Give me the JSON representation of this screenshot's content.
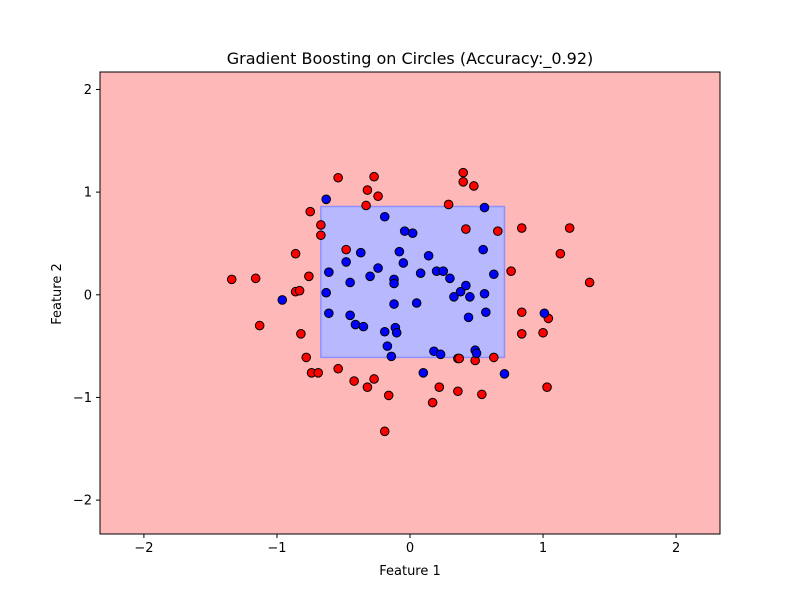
{
  "chart_data": {
    "type": "scatter",
    "title": "Gradient Boosting on Circles (Accuracy:_0.92)",
    "xlabel": "Feature 1",
    "ylabel": "Feature 2",
    "xlim": [
      -2.33,
      2.33
    ],
    "ylim": [
      -2.33,
      2.17
    ],
    "xticks": [
      -2,
      -1,
      0,
      1,
      2
    ],
    "yticks": [
      -2,
      -1,
      0,
      1,
      2
    ],
    "grid": false,
    "legend": "none",
    "colors": {
      "background_region": "#ffb8b8",
      "inner_region": "#b8b8ff",
      "inner_region_edge": "#8f8fff",
      "class_0_points": "#ff0000",
      "class_1_points": "#0000ff",
      "point_edge": "#000000"
    },
    "decision_regions": [
      {
        "class": 1,
        "x": [
          -0.67,
          0.71
        ],
        "y": [
          -0.61,
          0.86
        ]
      }
    ],
    "series": [
      {
        "class": 0,
        "color": "#ff0000",
        "points": [
          [
            -1.34,
            0.15
          ],
          [
            -1.16,
            0.16
          ],
          [
            -1.13,
            -0.3
          ],
          [
            -0.86,
            0.4
          ],
          [
            -0.86,
            0.03
          ],
          [
            -0.83,
            0.04
          ],
          [
            -0.82,
            -0.38
          ],
          [
            -0.78,
            -0.61
          ],
          [
            -0.76,
            0.18
          ],
          [
            -0.75,
            0.81
          ],
          [
            -0.74,
            -0.76
          ],
          [
            -0.69,
            -0.76
          ],
          [
            -0.67,
            0.68
          ],
          [
            -0.67,
            0.58
          ],
          [
            -0.54,
            1.14
          ],
          [
            -0.54,
            -0.72
          ],
          [
            -0.48,
            0.44
          ],
          [
            -0.42,
            -0.84
          ],
          [
            -0.33,
            0.87
          ],
          [
            -0.32,
            1.02
          ],
          [
            -0.32,
            -0.9
          ],
          [
            -0.27,
            1.15
          ],
          [
            -0.27,
            -0.82
          ],
          [
            -0.24,
            0.96
          ],
          [
            -0.19,
            -1.33
          ],
          [
            -0.16,
            -0.98
          ],
          [
            0.17,
            -1.05
          ],
          [
            0.22,
            -0.9
          ],
          [
            0.29,
            0.88
          ],
          [
            0.36,
            -0.62
          ],
          [
            0.37,
            -0.62
          ],
          [
            0.36,
            -0.94
          ],
          [
            0.4,
            1.19
          ],
          [
            0.4,
            1.1
          ],
          [
            0.42,
            0.64
          ],
          [
            0.48,
            1.06
          ],
          [
            0.49,
            -0.64
          ],
          [
            0.54,
            -0.97
          ],
          [
            0.63,
            -0.61
          ],
          [
            0.66,
            0.62
          ],
          [
            0.76,
            0.23
          ],
          [
            0.84,
            0.65
          ],
          [
            0.84,
            -0.17
          ],
          [
            0.84,
            -0.38
          ],
          [
            1.0,
            -0.37
          ],
          [
            1.03,
            -0.9
          ],
          [
            1.04,
            -0.23
          ],
          [
            1.13,
            0.4
          ],
          [
            1.2,
            0.65
          ],
          [
            1.35,
            0.12
          ]
        ]
      },
      {
        "class": 1,
        "color": "#0000ff",
        "points": [
          [
            -0.96,
            -0.05
          ],
          [
            -0.63,
            0.93
          ],
          [
            -0.63,
            0.02
          ],
          [
            -0.61,
            0.22
          ],
          [
            -0.61,
            -0.18
          ],
          [
            -0.48,
            0.32
          ],
          [
            -0.45,
            0.12
          ],
          [
            -0.45,
            -0.2
          ],
          [
            -0.41,
            -0.29
          ],
          [
            -0.37,
            0.41
          ],
          [
            -0.35,
            -0.31
          ],
          [
            -0.3,
            0.18
          ],
          [
            -0.24,
            0.26
          ],
          [
            -0.19,
            0.76
          ],
          [
            -0.19,
            -0.36
          ],
          [
            -0.17,
            -0.5
          ],
          [
            -0.14,
            -0.6
          ],
          [
            -0.12,
            0.15
          ],
          [
            -0.12,
            0.11
          ],
          [
            -0.12,
            -0.09
          ],
          [
            -0.11,
            -0.32
          ],
          [
            -0.1,
            -0.37
          ],
          [
            -0.08,
            0.42
          ],
          [
            -0.04,
            0.62
          ],
          [
            -0.05,
            0.31
          ],
          [
            0.02,
            0.6
          ],
          [
            0.05,
            -0.08
          ],
          [
            0.08,
            0.21
          ],
          [
            0.1,
            -0.76
          ],
          [
            0.14,
            0.38
          ],
          [
            0.18,
            -0.55
          ],
          [
            0.2,
            0.23
          ],
          [
            0.23,
            -0.58
          ],
          [
            0.25,
            0.23
          ],
          [
            0.3,
            0.16
          ],
          [
            0.33,
            -0.02
          ],
          [
            0.38,
            0.03
          ],
          [
            0.42,
            0.09
          ],
          [
            0.44,
            -0.22
          ],
          [
            0.45,
            -0.02
          ],
          [
            0.49,
            -0.54
          ],
          [
            0.5,
            -0.57
          ],
          [
            0.55,
            0.44
          ],
          [
            0.56,
            0.85
          ],
          [
            0.56,
            0.01
          ],
          [
            0.57,
            -0.17
          ],
          [
            0.63,
            0.2
          ],
          [
            0.71,
            -0.77
          ],
          [
            1.01,
            -0.18
          ]
        ]
      }
    ]
  }
}
